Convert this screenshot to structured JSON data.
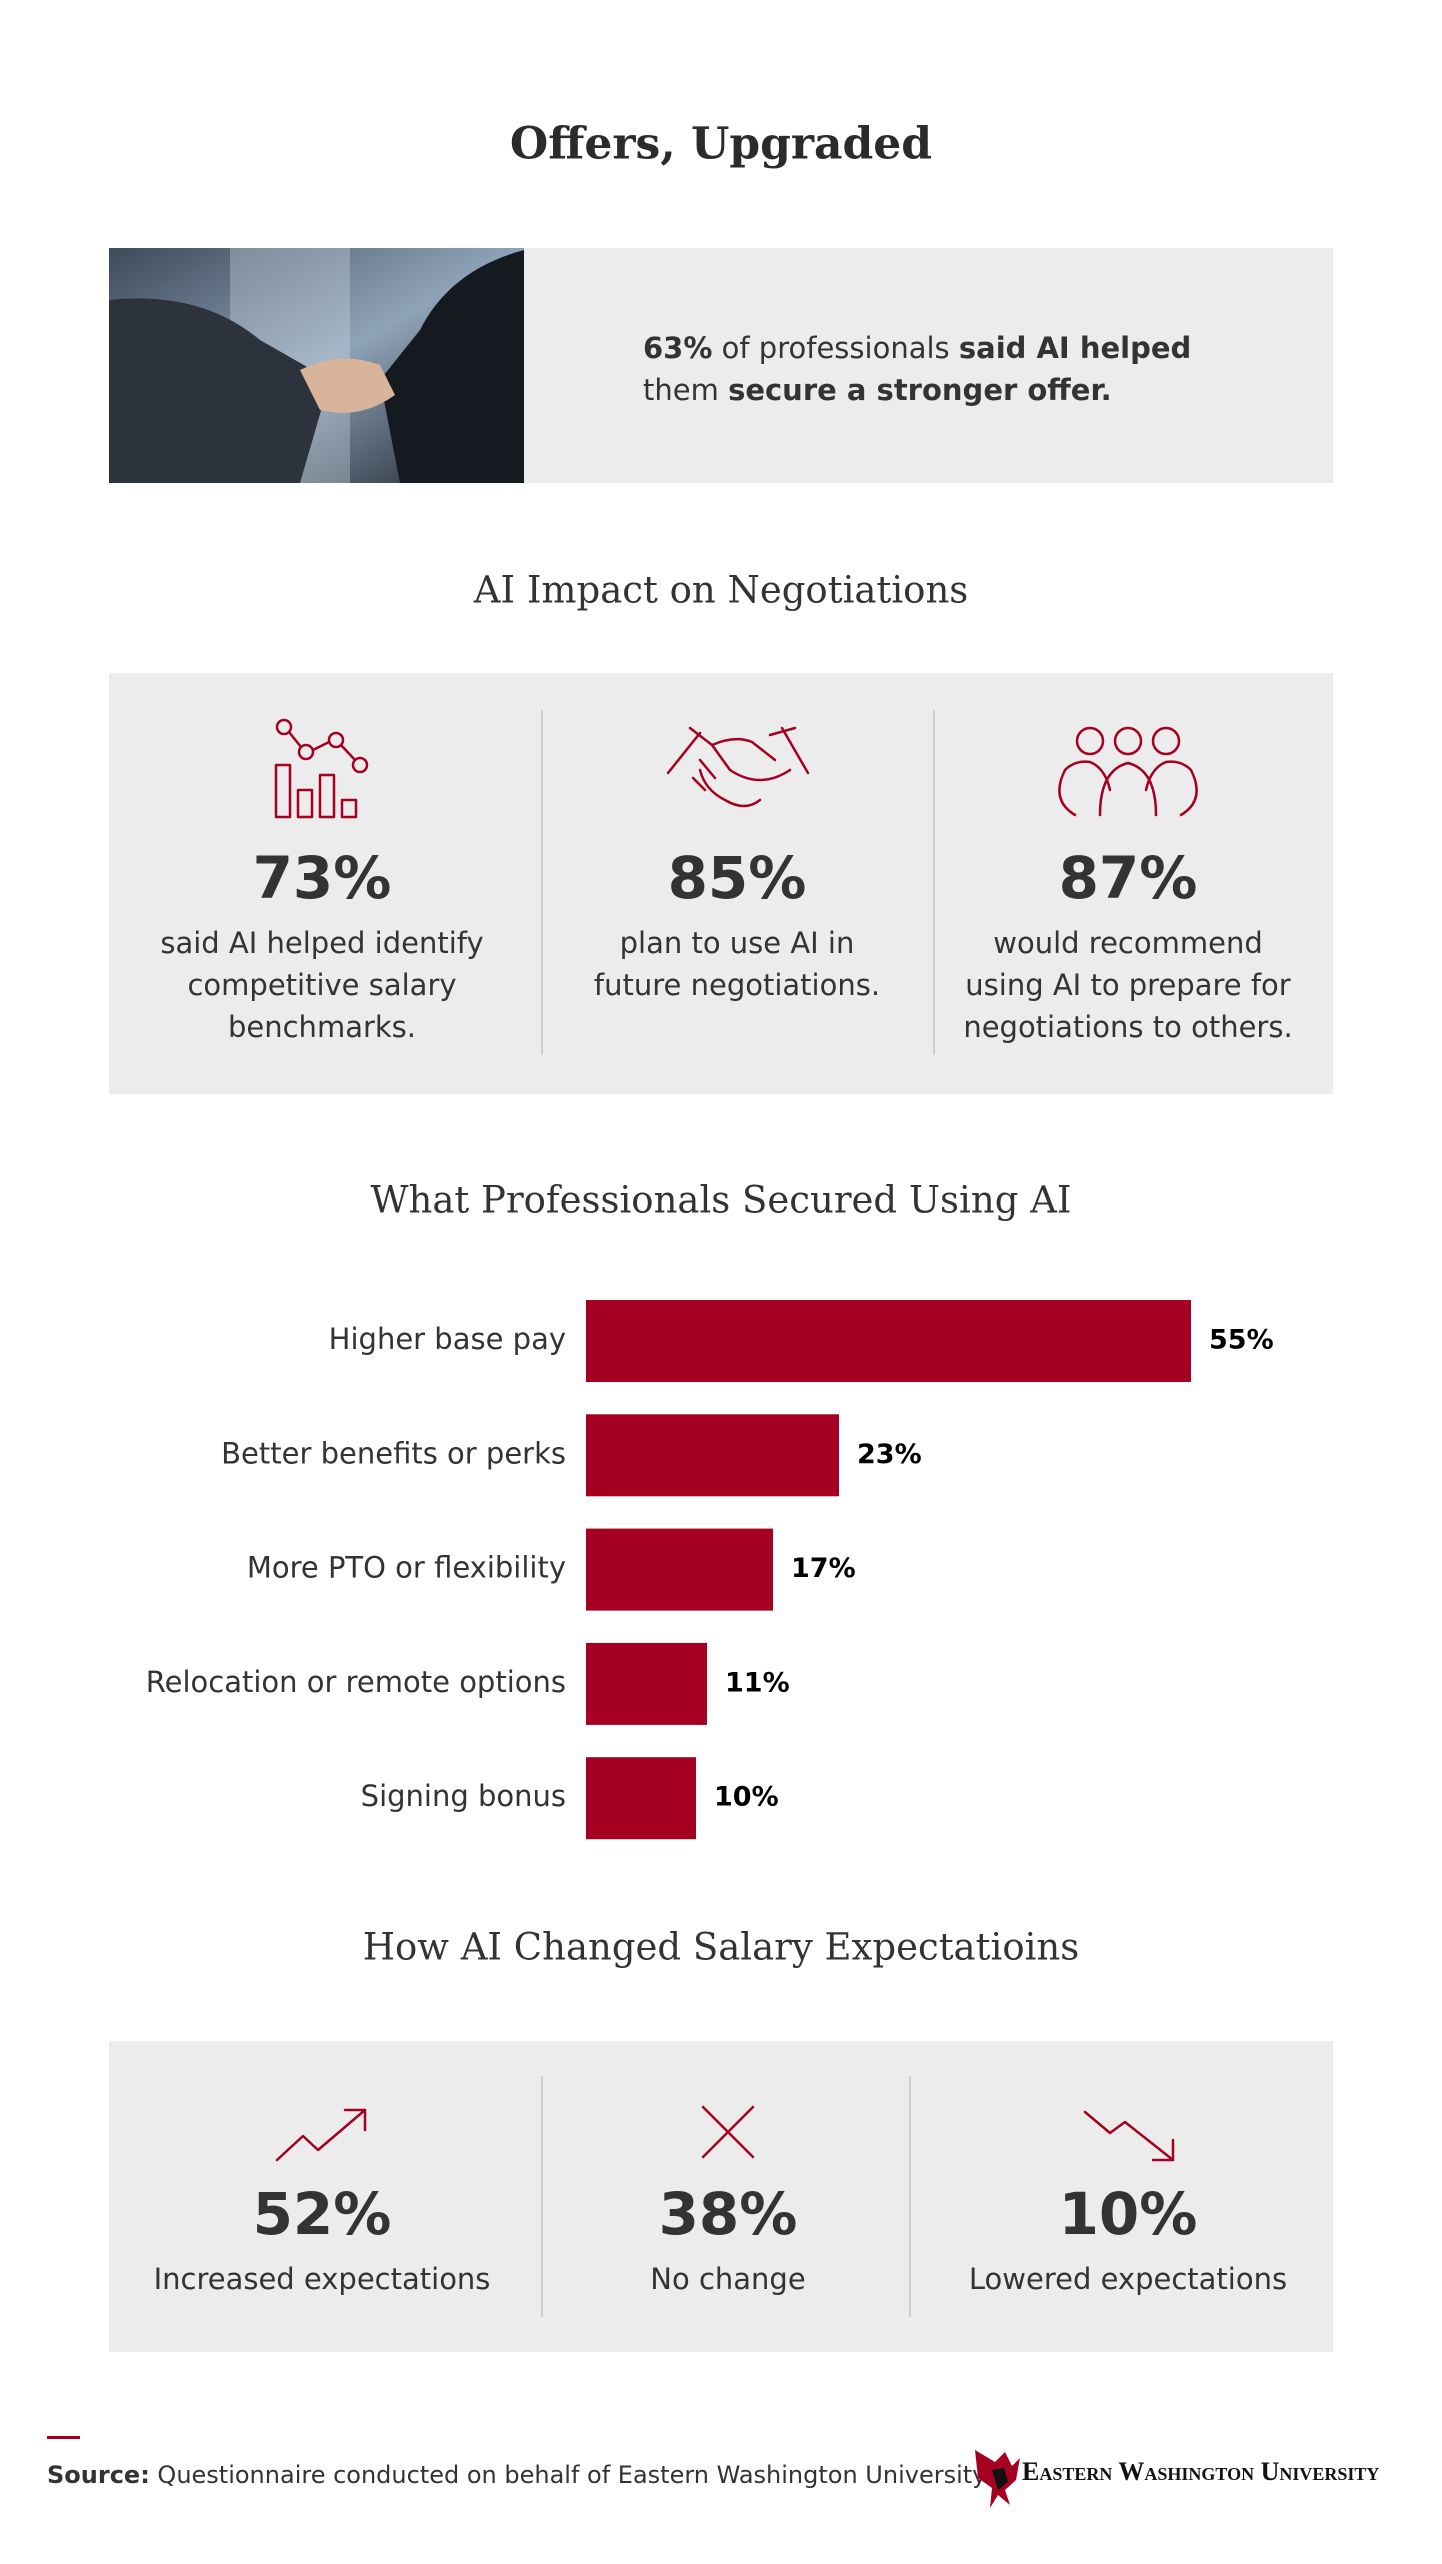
{
  "title": "Offers, Upgraded",
  "hero": {
    "line1": [
      "63%",
      " of professionals ",
      "said AI helped"
    ],
    "line2": [
      "them ",
      "secure a stronger offer."
    ]
  },
  "impact": {
    "heading": "AI Impact on Negotiations",
    "stats": [
      {
        "value": "73%",
        "description": [
          "said AI helped identify",
          "competitive salary",
          "benchmarks."
        ]
      },
      {
        "value": "85%",
        "description": [
          "plan to use AI in",
          "future negotiations."
        ]
      },
      {
        "value": "87%",
        "description": [
          "would recommend",
          "using AI to prepare for",
          "negotiations to others."
        ]
      }
    ]
  },
  "chart_data": {
    "type": "bar",
    "title": "What Professionals Secured Using AI",
    "categories": [
      "Higher base pay",
      "Better benefits or perks",
      "More PTO or flexibility",
      "Relocation or remote options",
      "Signing bonus"
    ],
    "values": [
      55,
      23,
      17,
      11,
      10
    ],
    "value_labels": [
      "55%",
      "23%",
      "17%",
      "11%",
      "10%"
    ],
    "color": "#a50021"
  },
  "expectations": {
    "heading": "How AI Changed Salary Expectatioins",
    "stats": [
      {
        "value": "52%",
        "label": "Increased expectations"
      },
      {
        "value": "38%",
        "label": "No change"
      },
      {
        "value": "10%",
        "label": "Lowered expectations"
      }
    ]
  },
  "footer": {
    "source_label": "Source:",
    "source_text": " Questionnaire conducted on behalf of Eastern Washington University",
    "logo": "Eastern Washington University"
  }
}
